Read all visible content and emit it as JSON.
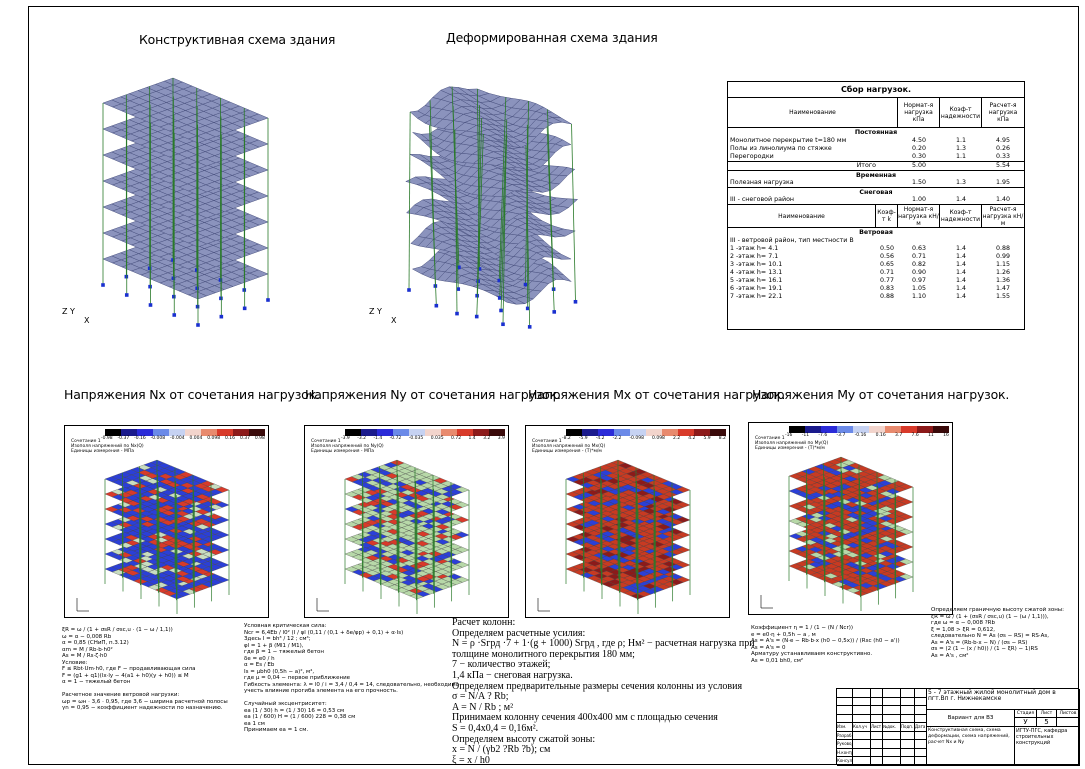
{
  "titles": {
    "constructive": "Конструктивная схема здания",
    "deformed": "Деформированная схема здания",
    "nx": "Напряжения Nx от сочетания нагрузок.",
    "ny": "Напряжения Ny от сочетания нагрузок.",
    "mx": "Напряжения Mx от сочетания нагрузок.",
    "my": "Напряжения My от сочетания нагрузок."
  },
  "axes": {
    "z": "Z",
    "y": "Y",
    "x": "X"
  },
  "load_table": {
    "title": "Сбор нагрузок.",
    "head1": {
      "name": "Наименование",
      "norm": "Нормат-я нагрузка кПа",
      "coef": "Коэф-т надежности",
      "calc": "Расчет-я нагрузка кПа"
    },
    "permanent_title": "Постоянная",
    "permanent": [
      {
        "name": "Монолитное перекрытие t=180 мм",
        "norm": "4.50",
        "coef": "1.1",
        "calc": "4.95"
      },
      {
        "name": "Полы из линолиума по стяжке",
        "norm": "0.20",
        "coef": "1.3",
        "calc": "0.26"
      },
      {
        "name": "Перегородки",
        "norm": "0.30",
        "coef": "1.1",
        "calc": "0.33"
      }
    ],
    "total": {
      "name": "Итого",
      "norm": "5.00",
      "calc": "5.54"
    },
    "temporary_title": "Временная",
    "temporary": [
      {
        "name": "Полезная нагрузка",
        "norm": "1.50",
        "coef": "1.3",
        "calc": "1.95"
      }
    ],
    "snow_title": "Снеговая",
    "snow": [
      {
        "name": "III - снеговой район",
        "norm": "1.00",
        "coef": "1.4",
        "calc": "1.40"
      }
    ],
    "head2": {
      "name": "Наименование",
      "k": "Коэф-т k",
      "norm": "Нормат-я нагрузка кН/м",
      "coef": "Коэф-т надежности",
      "calc": "Расчет-я нагрузка кН/м"
    },
    "wind_title": "Ветровая",
    "wind_sub": "III - ветровой район, тип местности В",
    "wind": [
      {
        "name": "1 -этаж h= 4.1",
        "k": "0.50",
        "norm": "0.63",
        "coef": "1.4",
        "calc": "0.88"
      },
      {
        "name": "2 -этаж h= 7.1",
        "k": "0.56",
        "norm": "0.71",
        "coef": "1.4",
        "calc": "0.99"
      },
      {
        "name": "3 -этаж h= 10.1",
        "k": "0.65",
        "norm": "0.82",
        "coef": "1.4",
        "calc": "1.15"
      },
      {
        "name": "4 -этаж h= 13.1",
        "k": "0.71",
        "norm": "0.90",
        "coef": "1.4",
        "calc": "1.26"
      },
      {
        "name": "5 -этаж h= 16.1",
        "k": "0.77",
        "norm": "0.97",
        "coef": "1.4",
        "calc": "1.36"
      },
      {
        "name": "6 -этаж h= 19.1",
        "k": "0.83",
        "norm": "1.05",
        "coef": "1.4",
        "calc": "1.47"
      },
      {
        "name": "7 -этаж h= 22.1",
        "k": "0.88",
        "norm": "1.10",
        "coef": "1.4",
        "calc": "1.55"
      }
    ]
  },
  "stress_panels": {
    "nx": {
      "ticks": [
        "-0.98",
        "-0.37",
        "-0.16",
        "-0.008",
        "-0.004",
        "0.004",
        "0.098",
        "0.16",
        "0.37",
        "0.98"
      ],
      "legend": [
        "Сочетание 1",
        "Изополя напряжений по Nx(Q)",
        "Единицы измерения - МПа"
      ]
    },
    "ny": {
      "ticks": [
        "-3.9",
        "-3.2",
        "-1.4",
        "-0.72",
        "-0.035",
        "0.035",
        "0.72",
        "1.4",
        "3.2",
        "3.9"
      ],
      "legend": [
        "Сочетание 1",
        "Изополя напряжений по Ny(Q)",
        "Единицы измерения - МПа"
      ]
    },
    "mx": {
      "ticks": [
        "-8.2",
        "-5.9",
        "-4.2",
        "-2.2",
        "-0.098",
        "0.098",
        "2.2",
        "4.2",
        "5.9",
        "8.2"
      ],
      "legend": [
        "Сочетание 1",
        "Изополя напряжений по Mx(Q)",
        "Единицы измерения - (Т)*м/м"
      ]
    },
    "my": {
      "ticks": [
        "-16",
        "-11",
        "-7.6",
        "-3.7",
        "-0.16",
        "0.16",
        "3.7",
        "7.6",
        "11",
        "16"
      ],
      "legend": [
        "Сочетание 1",
        "Изополя напряжений по My(Q)",
        "Единицы измерения - (Т)*м/м"
      ]
    }
  },
  "calc_left": [
    "ξR = ω / (1 + σsR / σsc,u · (1 − ω / 1,1))",
    "ω = α − 0,008 Rb",
    "α = 0,85 (СНиП, п.3.12)",
    "αm = M / Rb·b·h0²",
    "As = M / Rs·ζ·h0",
    "Условие:",
    "  F ≤ Rbt·Um·h0, где F − продавливающая сила",
    "  F = (g1 + q1)(lx·ly − 4(a1 + h0)(y + h0)) ≤ M",
    "  α = 1 − тяжелый бетон",
    "",
    "Расчетное значение ветровой нагрузки:",
    "  ωр = ωн · 3,6 · 0,95, где 3,6 − ширина расчетной полосы",
    "  γn = 0,95 − коэффициент надежности по назначению."
  ],
  "calc_mid": [
    "Условная критическая сила:",
    "Ncr = 6,4Eb / l0² (I / φl (0,11 / (0,1 + δe/φp) + 0,1) + α·Is)",
    "Здесь I = bh³ / 12 ; см⁴;",
    "φl = 1 + β (Ml1 / M1),",
    "где β = 1 − тяжелый бетон",
    "δe = e0 / h",
    "α = Es / Eb",
    "Is = μbh0 (0,5h − a)², м⁴,",
    "где μ = 0,04 − первое приближение",
    "Гибкость элемента: λ = l0 / i = 3,4 / 0,4 = 14, следовательно, необходимо",
    "учесть влияние прогиба элемента на его прочность.",
    "",
    "Случайный эксцентриситет:",
    "  ea (1 / 30) h = (1 / 30) 16 = 0,53 см",
    "  ea (1 / 600) H = (1 / 600) 228 = 0,38 см",
    "  ea 1 см",
    "Принимаем ea = 1 см."
  ],
  "calc_center": [
    "Расчет колонн:",
    "Определяем расчетные усилия:",
    "      N = ρ ·Sгрд ·7 + 1·(g + 1000) Sгрд , где ρ; Нм² − расчетная нагрузка при",
    "толщине монолитного перекрытия 180 мм;",
    "      7 − количество этажей;",
    "      1,4 кПа − снеговая нагрузка.",
    "      Определяем предварительные размеры сечения колонны из условия",
    "      σ = N/A ? Rb;",
    "      A = N / Rb ; м²",
    "      Принимаем колонну сечения 400х400 мм с площадью сечения",
    "      S = 0,4х0,4 = 0,16м².",
    "      Определяем высоту сжатой зоны:",
    "      x = N / (γb2 ?Rb ?b); см",
    "      ξ = x / h0"
  ],
  "calc_right1": [
    "Коэффициент η = 1 / (1 − (N / Ncr))",
    "e = e0·η + 0,5h − a , м",
    "As = A's = (N·e − Rb·b·x (h0 − 0,5x)) / (Rsc (h0 − a'))",
    "As = A's = 0",
    "Арматуру устанавливаем конструктивно.",
    "As = 0,01 bh0, см²"
  ],
  "calc_right2": [
    "Определяем граничную высоту сжатой зоны:",
    "ξR = ω / (1 + (σsR / σsc,u) (1 − (ω / 1,1))),",
    "где ω = α − 0,008 ?Rb",
    "ξ = 1,08 > ξR = 0,612,",
    "следовательно N = As (σs − RS) = RS·As,",
    "  As = A's = (Rb·b·x − N) / (σs − RS)",
    "  σs = (2 (1 − (x / h0)) / (1 − ξR) − 1)RS",
    "  As = A's , см²"
  ],
  "stamp": {
    "sheet_name": "Лист ?",
    "project": "5 - 7 этажный жилой монолитный дом в пгт.Вп г. Нижнекамске",
    "stage_label": "Стадия",
    "sheet_label": "Лист",
    "sheets_label": "Листов",
    "stage": "У",
    "sheet": "5",
    "drawing_title": "Вариант для ВЗ",
    "contents": "Конструктивная схема, схема деформации, схема напряжений, расчет Nx и Ny",
    "org": "ИГТУ-ПГС, кафедра строительных конструкций",
    "roles": [
      "Разраб.",
      "Руковод.",
      "Н.контр.",
      "Консульт.",
      "Утверд."
    ],
    "head": [
      "Изм.",
      "Кол.уч",
      "Лист",
      "№док.",
      "Подп.",
      "Дата"
    ]
  }
}
